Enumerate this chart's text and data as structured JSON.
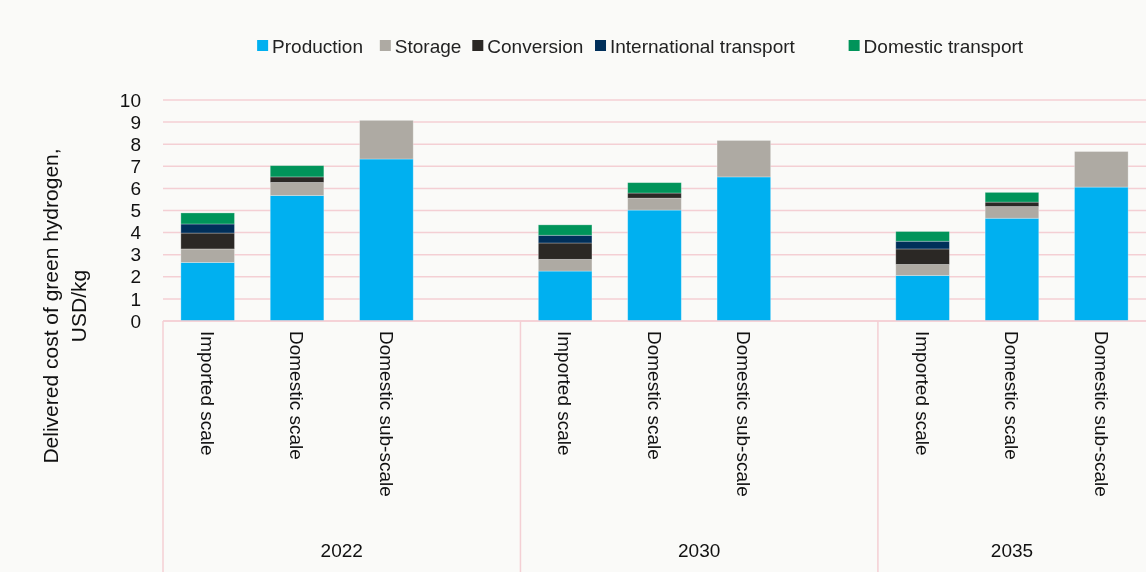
{
  "chart_data": {
    "type": "bar",
    "stacked": true,
    "ylabel": "Delivered cost of green hydrogen, USD/kg",
    "categories": [
      "Imported scale",
      "Domestic scale",
      "Domestic sub-scale",
      null,
      "Imported scale",
      "Domestic scale",
      "Domestic sub-scale",
      null,
      "Imported scale",
      "Domestic scale",
      "Domestic sub-scale"
    ],
    "annotations": [
      "2022",
      "2030",
      "2035"
    ],
    "series": [
      {
        "name": "Production",
        "color": "#00b0f0",
        "values": [
          2.65,
          5.68,
          7.33,
          null,
          2.26,
          5.02,
          6.52,
          null,
          2.06,
          4.65,
          6.06
        ]
      },
      {
        "name": "Storage",
        "color": "#aeaaa3",
        "values": [
          0.61,
          0.59,
          1.75,
          null,
          0.53,
          0.54,
          1.65,
          null,
          0.5,
          0.53,
          1.61
        ]
      },
      {
        "name": "Conversion",
        "color": "#2b2825",
        "values": [
          0.72,
          0.25,
          null,
          null,
          0.74,
          0.23,
          null,
          null,
          0.7,
          0.2,
          null
        ]
      },
      {
        "name": "International transport",
        "color": "#002f5a",
        "values": [
          0.41,
          null,
          null,
          null,
          0.35,
          null,
          null,
          null,
          0.35,
          null,
          null
        ]
      },
      {
        "name": "Domestic transport",
        "color": "#00945a",
        "values": [
          0.5,
          0.51,
          null,
          null,
          0.47,
          0.47,
          null,
          null,
          0.44,
          0.44,
          null
        ]
      }
    ],
    "ylim": [
      0,
      10
    ],
    "yticks": [
      0,
      1,
      2,
      3,
      4,
      5,
      6,
      7,
      8,
      9,
      10
    ],
    "grid": "y",
    "legend": "top"
  }
}
